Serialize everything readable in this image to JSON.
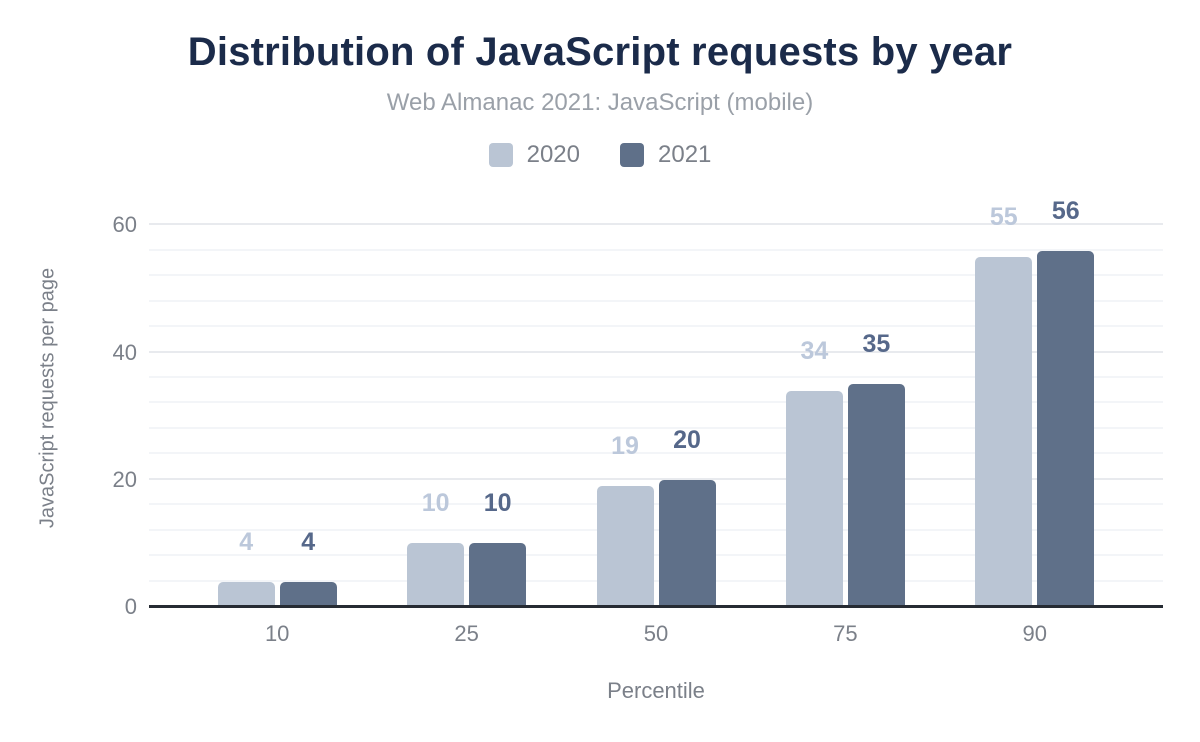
{
  "chart_data": {
    "type": "bar",
    "title": "Distribution of JavaScript requests by year",
    "subtitle": "Web Almanac 2021: JavaScript (mobile)",
    "xlabel": "Percentile",
    "ylabel": "JavaScript requests per page",
    "categories": [
      "10",
      "25",
      "50",
      "75",
      "90"
    ],
    "series": [
      {
        "name": "2020",
        "color": "#bac5d4",
        "label_color": "#bcc8db",
        "values": [
          4,
          10,
          19,
          34,
          55
        ]
      },
      {
        "name": "2021",
        "color": "#5f7089",
        "label_color": "#56688a",
        "values": [
          4,
          10,
          20,
          35,
          56
        ]
      }
    ],
    "y_ticks": [
      0,
      20,
      40,
      60
    ],
    "ylim": [
      0,
      60
    ],
    "grid": {
      "show": true,
      "minor_step": 4,
      "major_step": 20
    },
    "legend_position": "top"
  },
  "styles": {
    "background": "#ffffff",
    "title_color": "#1b2b4a",
    "subtitle_color": "#9aa0a8",
    "axis_text_color": "#7b8089",
    "major_grid_color": "#e8eaee",
    "minor_grid_color": "#f3f5f8",
    "axis_line_color": "#262b33"
  }
}
